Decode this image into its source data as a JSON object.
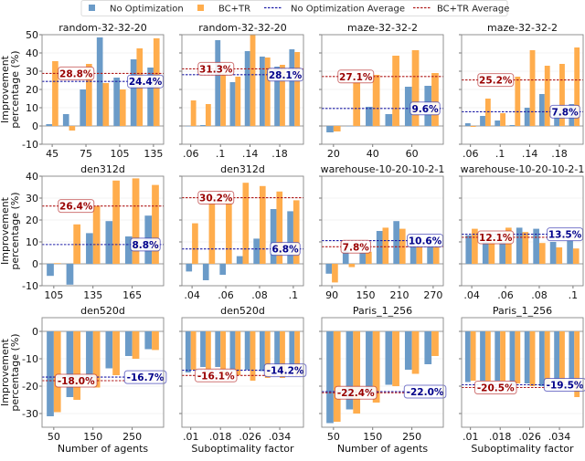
{
  "legend": {
    "placement": "top",
    "items": [
      {
        "label": "No Optimization",
        "kind": "bar",
        "color": "#6b9bc8"
      },
      {
        "label": "BC+TR",
        "kind": "bar",
        "color": "#ffad4d"
      },
      {
        "label": "No Optimization Average",
        "kind": "dashed",
        "color": "#1f1fa8"
      },
      {
        "label": "BC+TR Average",
        "kind": "dashed",
        "color": "#b01c1c"
      }
    ]
  },
  "ylabel": [
    "Improvement",
    "percentage (%)"
  ],
  "colors": {
    "no_opt": "#6b9bc8",
    "bctr": "#ffad4d",
    "no_opt_avg": "#1f1fa8",
    "bctr_avg": "#b01c1c",
    "no_opt_label": "#00008b",
    "bctr_label": "#990000"
  },
  "chart_data": [
    {
      "type": "bar",
      "title": "random-32-32-20",
      "x": [
        "45",
        "60",
        "75",
        "90",
        "105",
        "120",
        "135"
      ],
      "xticks": [
        "45",
        "75",
        "105",
        "135"
      ],
      "ylim": [
        -10,
        50
      ],
      "yticks": [
        -10,
        0,
        10,
        20,
        30,
        40,
        50
      ],
      "series": [
        {
          "name": "No Optimization",
          "values": [
            1,
            6.5,
            20,
            48.5,
            26.5,
            36.5,
            32
          ]
        },
        {
          "name": "BC+TR",
          "values": [
            35.5,
            -2.5,
            34,
            23.5,
            20,
            42.5,
            48
          ]
        }
      ],
      "averages": {
        "No Optimization Average": 24.4,
        "BC+TR Average": 28.8
      },
      "average_labels": {
        "no_opt": "24.4%",
        "bctr": "28.8%"
      }
    },
    {
      "type": "bar",
      "title": "random-32-32-20",
      "x": [
        ".06",
        ".08",
        ".1",
        ".12",
        ".14",
        ".16",
        ".18",
        ".2"
      ],
      "xticks": [
        ".06",
        ".1",
        ".14",
        ".18"
      ],
      "ylim": [
        -10,
        50
      ],
      "yticks": [
        -10,
        0,
        10,
        20,
        30,
        40,
        50
      ],
      "series": [
        {
          "name": "No Optimization",
          "values": [
            0,
            0.5,
            47,
            24,
            41,
            38,
            32.5,
            42
          ]
        },
        {
          "name": "BC+TR",
          "values": [
            14,
            12,
            29,
            27,
            50,
            37.5,
            33.5,
            40.5
          ]
        }
      ],
      "averages": {
        "No Optimization Average": 28.1,
        "BC+TR Average": 31.3
      },
      "average_labels": {
        "no_opt": "28.1%",
        "bctr": "31.3%"
      }
    },
    {
      "type": "bar",
      "title": "maze-32-32-2",
      "x": [
        "20",
        "30",
        "40",
        "50",
        "60",
        "70"
      ],
      "xticks": [
        "20",
        "40",
        "60"
      ],
      "ylim": [
        -10,
        50
      ],
      "yticks": [
        -10,
        0,
        10,
        20,
        30,
        40,
        50
      ],
      "series": [
        {
          "name": "No Optimization",
          "values": [
            -3.5,
            0,
            10.5,
            6.5,
            21.5,
            22
          ]
        },
        {
          "name": "BC+TR",
          "values": [
            -3,
            24,
            28,
            38.5,
            41.5,
            29
          ]
        }
      ],
      "averages": {
        "No Optimization Average": 9.6,
        "BC+TR Average": 27.1
      },
      "average_labels": {
        "no_opt": "9.6%",
        "bctr": "27.1%"
      }
    },
    {
      "type": "bar",
      "title": "maze-32-32-2",
      "x": [
        ".06",
        ".08",
        ".1",
        ".12",
        ".14",
        ".16",
        ".18",
        ".2"
      ],
      "xticks": [
        ".06",
        ".1",
        ".14",
        ".18"
      ],
      "ylim": [
        -10,
        50
      ],
      "yticks": [
        -10,
        0,
        10,
        20,
        30,
        40,
        50
      ],
      "series": [
        {
          "name": "No Optimization",
          "values": [
            1.5,
            5.5,
            3,
            0.5,
            10,
            17.5,
            8,
            12
          ]
        },
        {
          "name": "BC+TR",
          "values": [
            -0.5,
            15,
            7,
            27,
            41.5,
            33,
            34,
            43
          ]
        }
      ],
      "averages": {
        "No Optimization Average": 7.8,
        "BC+TR Average": 25.2
      },
      "average_labels": {
        "no_opt": "7.8%",
        "bctr": "25.2%"
      }
    },
    {
      "type": "bar",
      "title": "den312d",
      "x": [
        "105",
        "120",
        "135",
        "150",
        "165",
        "180"
      ],
      "xticks": [
        "105",
        "135",
        "165"
      ],
      "ylim": [
        -10,
        40
      ],
      "yticks": [
        -10,
        0,
        10,
        20,
        30,
        40
      ],
      "series": [
        {
          "name": "No Optimization",
          "values": [
            -5.5,
            -9.5,
            14,
            19.5,
            12.5,
            22
          ]
        },
        {
          "name": "BC+TR",
          "values": [
            0.3,
            18,
            26.5,
            38,
            39,
            36
          ]
        }
      ],
      "averages": {
        "No Optimization Average": 8.8,
        "BC+TR Average": 26.4
      },
      "average_labels": {
        "no_opt": "8.8%",
        "bctr": "26.4%"
      }
    },
    {
      "type": "bar",
      "title": "den312d",
      "x": [
        ".04",
        ".05",
        ".06",
        ".07",
        ".08",
        ".09",
        ".1"
      ],
      "xticks": [
        ".04",
        ".06",
        ".08",
        ".1"
      ],
      "ylim": [
        -10,
        40
      ],
      "yticks": [
        -10,
        0,
        10,
        20,
        30,
        40
      ],
      "series": [
        {
          "name": "No Optimization",
          "values": [
            -3.5,
            -7.5,
            -5,
            3.5,
            11.5,
            25,
            24
          ]
        },
        {
          "name": "BC+TR",
          "values": [
            18.5,
            28,
            30,
            37,
            35.5,
            33,
            29
          ]
        }
      ],
      "averages": {
        "No Optimization Average": 6.8,
        "BC+TR Average": 30.2
      },
      "average_labels": {
        "no_opt": "6.8%",
        "bctr": "30.2%"
      }
    },
    {
      "type": "bar",
      "title": "warehouse-10-20-10-2-1",
      "x": [
        "90",
        "120",
        "150",
        "180",
        "210",
        "240",
        "270"
      ],
      "xticks": [
        "90",
        "150",
        "210",
        "270"
      ],
      "ylim": [
        -10,
        40
      ],
      "yticks": [
        -10,
        0,
        10,
        20,
        30,
        40
      ],
      "series": [
        {
          "name": "No Optimization",
          "values": [
            -4.5,
            6,
            5,
            15,
            19.5,
            13,
            9
          ]
        },
        {
          "name": "BC+TR",
          "values": [
            -8.5,
            -1.5,
            5.5,
            16.5,
            16,
            8,
            8
          ]
        }
      ],
      "averages": {
        "No Optimization Average": 10.6,
        "BC+TR Average": 7.8
      },
      "average_labels": {
        "no_opt": "10.6%",
        "bctr": "7.8%"
      }
    },
    {
      "type": "bar",
      "title": "warehouse-10-20-10-2-1",
      "x": [
        ".04",
        ".05",
        ".06",
        ".07",
        ".08",
        ".09",
        ".1"
      ],
      "xticks": [
        ".04",
        ".06",
        ".08",
        ".1"
      ],
      "ylim": [
        -10,
        40
      ],
      "yticks": [
        -10,
        0,
        10,
        20,
        30,
        40
      ],
      "series": [
        {
          "name": "No Optimization",
          "values": [
            13,
            10,
            10,
            16.5,
            16,
            10,
            10.5
          ]
        },
        {
          "name": "BC+TR",
          "values": [
            16,
            10,
            16.5,
            14.5,
            9.5,
            7.5,
            7
          ]
        }
      ],
      "averages": {
        "No Optimization Average": 13.5,
        "BC+TR Average": 12.1
      },
      "average_labels": {
        "no_opt": "13.5%",
        "bctr": "12.1%"
      }
    },
    {
      "type": "bar",
      "title": "den520d",
      "xlabel": "Number of agents",
      "x": [
        "50",
        "100",
        "150",
        "200",
        "250",
        "300"
      ],
      "xticks": [
        "50",
        "150",
        "250"
      ],
      "ylim": [
        -35,
        5
      ],
      "yticks": [
        -30,
        -20,
        -10,
        0
      ],
      "series": [
        {
          "name": "No Optimization",
          "values": [
            -31,
            -24,
            -18,
            -13.5,
            -9,
            -6.5
          ]
        },
        {
          "name": "BC+TR",
          "values": [
            -29.5,
            -25,
            -20.5,
            -16,
            -10,
            -6.8
          ]
        }
      ],
      "averages": {
        "No Optimization Average": -16.7,
        "BC+TR Average": -18.0
      },
      "average_labels": {
        "no_opt": "-16.7%",
        "bctr": "-18.0%"
      }
    },
    {
      "type": "bar",
      "title": "den520d",
      "xlabel": "Suboptimality factor",
      "x": [
        ".01",
        ".014",
        ".018",
        ".022",
        ".026",
        ".03",
        ".034",
        ".038"
      ],
      "xticks": [
        ".01",
        ".018",
        ".026",
        ".034"
      ],
      "ylim": [
        -35,
        5
      ],
      "yticks": [
        -30,
        -20,
        -10,
        0
      ],
      "series": [
        {
          "name": "No Optimization",
          "values": [
            -15,
            -13,
            -13,
            -14.5,
            -14,
            -14.5,
            -14,
            -14
          ]
        },
        {
          "name": "BC+TR",
          "values": [
            -14,
            -15,
            -16,
            -16,
            -18,
            -17,
            -17,
            -16
          ]
        }
      ],
      "averages": {
        "No Optimization Average": -14.2,
        "BC+TR Average": -16.1
      },
      "average_labels": {
        "no_opt": "-14.2%",
        "bctr": "-16.1%"
      }
    },
    {
      "type": "bar",
      "title": "Paris_1_256",
      "xlabel": "Number of agents",
      "x": [
        "50",
        "100",
        "150",
        "200",
        "250",
        "300"
      ],
      "xticks": [
        "50",
        "150",
        "250"
      ],
      "ylim": [
        -35,
        5
      ],
      "yticks": [
        -30,
        -20,
        -10,
        0
      ],
      "series": [
        {
          "name": "No Optimization",
          "values": [
            -33.5,
            -28.5,
            -23,
            -19.5,
            -14,
            -12
          ]
        },
        {
          "name": "BC+TR",
          "values": [
            -33,
            -30,
            -26,
            -20,
            -15.5,
            -9
          ]
        }
      ],
      "averages": {
        "No Optimization Average": -22.0,
        "BC+TR Average": -22.4
      },
      "average_labels": {
        "no_opt": "-22.0%",
        "bctr": "-22.4%"
      }
    },
    {
      "type": "bar",
      "title": "Paris_1_256",
      "xlabel": "Suboptimality factor",
      "x": [
        ".01",
        ".014",
        ".018",
        ".022",
        ".026",
        ".03",
        ".034",
        ".038"
      ],
      "xticks": [
        ".01",
        ".018",
        ".026",
        ".034"
      ],
      "ylim": [
        -35,
        5
      ],
      "yticks": [
        -30,
        -20,
        -10,
        0
      ],
      "series": [
        {
          "name": "No Optimization",
          "values": [
            -18.5,
            -18,
            -18,
            -20,
            -19,
            -20,
            -20,
            -20.5
          ]
        },
        {
          "name": "BC+TR",
          "values": [
            -18,
            -18,
            -18,
            -19,
            -20,
            -20,
            -19,
            -24
          ]
        }
      ],
      "averages": {
        "No Optimization Average": -19.5,
        "BC+TR Average": -20.5
      },
      "average_labels": {
        "no_opt": "-19.5%",
        "bctr": "-20.5%"
      }
    }
  ]
}
